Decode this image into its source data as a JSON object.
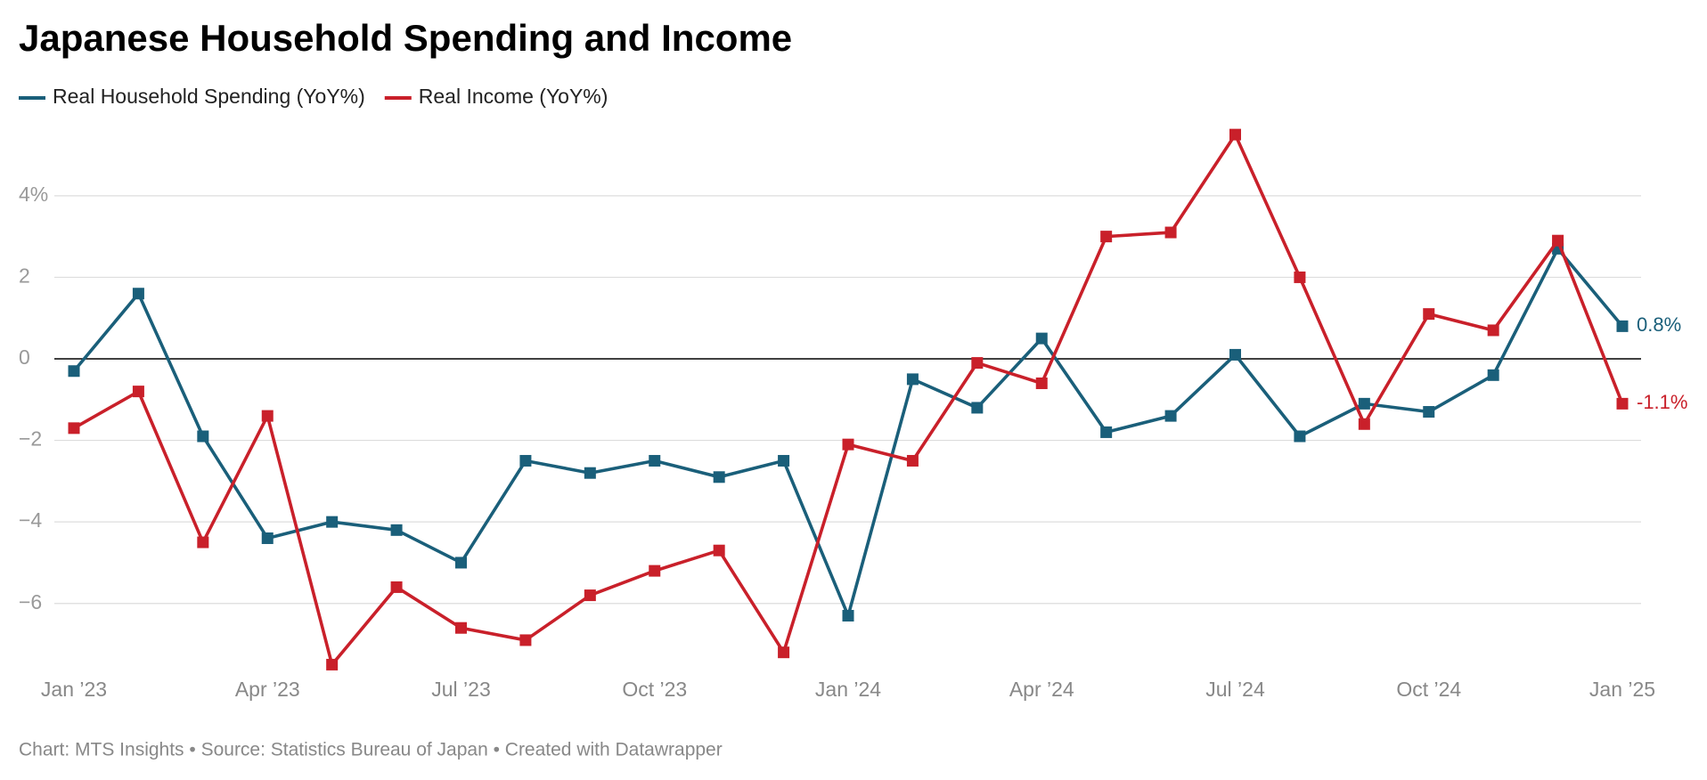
{
  "chart_data": {
    "type": "line",
    "title": "Japanese Household Spending and Income",
    "source": "Chart: MTS Insights • Source: Statistics Bureau of Japan • Created with Datawrapper",
    "categories": [
      "Jan ’23",
      null,
      null,
      "Apr ’23",
      null,
      null,
      "Jul ’23",
      null,
      null,
      "Oct ’23",
      null,
      null,
      "Jan ’24",
      null,
      null,
      "Apr ’24",
      null,
      null,
      "Jul ’24",
      null,
      null,
      "Oct ’24",
      null,
      null,
      "Jan ’25"
    ],
    "series": [
      {
        "name": "Real Household Spending (YoY%)",
        "color": "#1a5f7a",
        "values": [
          -0.3,
          1.6,
          -1.9,
          -4.4,
          -4.0,
          -4.2,
          -5.0,
          -2.5,
          -2.8,
          -2.5,
          -2.9,
          -2.5,
          -6.3,
          -0.5,
          -1.2,
          0.5,
          -1.8,
          -1.4,
          0.1,
          -1.9,
          -1.1,
          -1.3,
          -0.4,
          2.7,
          0.8
        ],
        "value_labels": [
          null,
          null,
          null,
          null,
          null,
          null,
          null,
          null,
          null,
          null,
          null,
          null,
          null,
          null,
          null,
          null,
          null,
          null,
          null,
          null,
          null,
          null,
          null,
          null,
          "0.8%"
        ]
      },
      {
        "name": "Real Income (YoY%)",
        "color": "#c9202a",
        "values": [
          -1.7,
          -0.8,
          -4.5,
          -1.4,
          -7.5,
          -5.6,
          -6.6,
          -6.9,
          -5.8,
          -5.2,
          -4.7,
          -7.2,
          -2.1,
          -2.5,
          -0.1,
          -0.6,
          3.0,
          3.1,
          5.5,
          2.0,
          -1.6,
          1.1,
          0.7,
          2.9,
          -1.1
        ],
        "value_labels": [
          null,
          null,
          null,
          null,
          null,
          null,
          null,
          null,
          null,
          null,
          null,
          null,
          null,
          null,
          null,
          null,
          null,
          null,
          null,
          null,
          null,
          null,
          null,
          null,
          "-1.1%"
        ]
      }
    ],
    "ylim": [
      -7.6,
      5.7
    ],
    "yticks": [
      {
        "value": 4,
        "label": "4%"
      },
      2,
      0,
      {
        "value": -2,
        "label": "−2"
      },
      {
        "value": -4,
        "label": "−4"
      },
      {
        "value": -6,
        "label": "−6"
      }
    ],
    "grid": true,
    "zero_line": true
  }
}
